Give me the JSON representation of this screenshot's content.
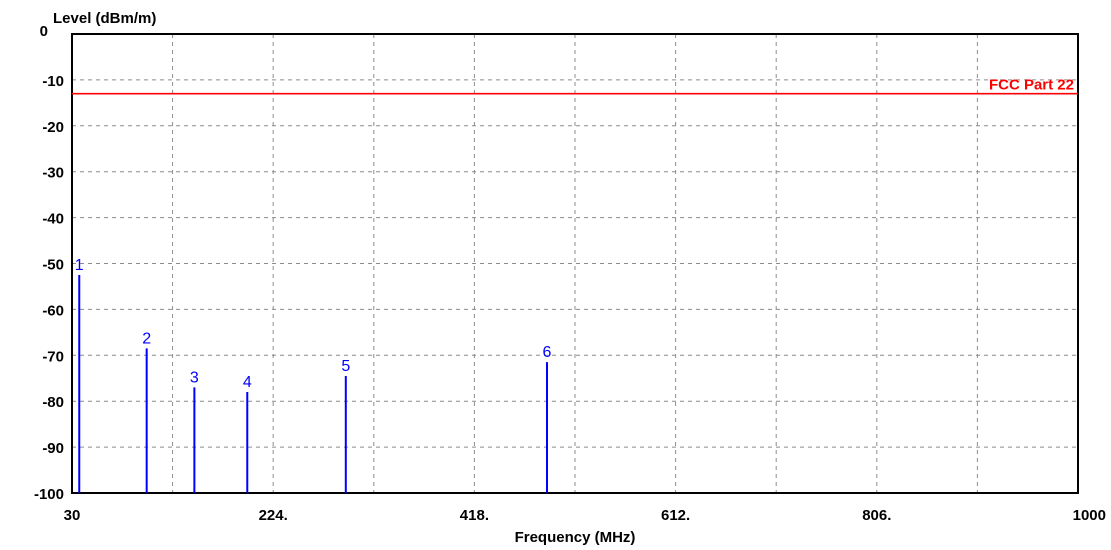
{
  "chart_data": {
    "type": "line",
    "title": "",
    "ylabel": "Level (dBm/m)",
    "xlabel": "Frequency (MHz)",
    "xlim": [
      30,
      1000
    ],
    "ylim": [
      -100,
      0
    ],
    "x_ticks": [
      {
        "value": 30,
        "label": "30"
      },
      {
        "value": 224,
        "label": "224."
      },
      {
        "value": 418,
        "label": "418."
      },
      {
        "value": 612,
        "label": "612."
      },
      {
        "value": 806,
        "label": "806."
      },
      {
        "value": 1000,
        "label": "1000"
      }
    ],
    "x_grid": [
      127,
      224,
      321,
      418,
      515,
      612,
      709,
      806,
      903
    ],
    "y_ticks": [
      0,
      -10,
      -20,
      -30,
      -40,
      -50,
      -60,
      -70,
      -80,
      -90,
      -100
    ],
    "grid": true,
    "grid_style": "dashed",
    "limit_line": {
      "name": "FCC Part 22",
      "value": -13,
      "color": "#ff0000"
    },
    "markers": [
      {
        "label": "1",
        "x": 37,
        "y": -52.5
      },
      {
        "label": "2",
        "x": 102,
        "y": -68.5
      },
      {
        "label": "3",
        "x": 148,
        "y": -77
      },
      {
        "label": "4",
        "x": 199,
        "y": -78
      },
      {
        "label": "5",
        "x": 294,
        "y": -74.5
      },
      {
        "label": "6",
        "x": 488,
        "y": -71.5
      }
    ],
    "marker_color": "#0000ff"
  }
}
